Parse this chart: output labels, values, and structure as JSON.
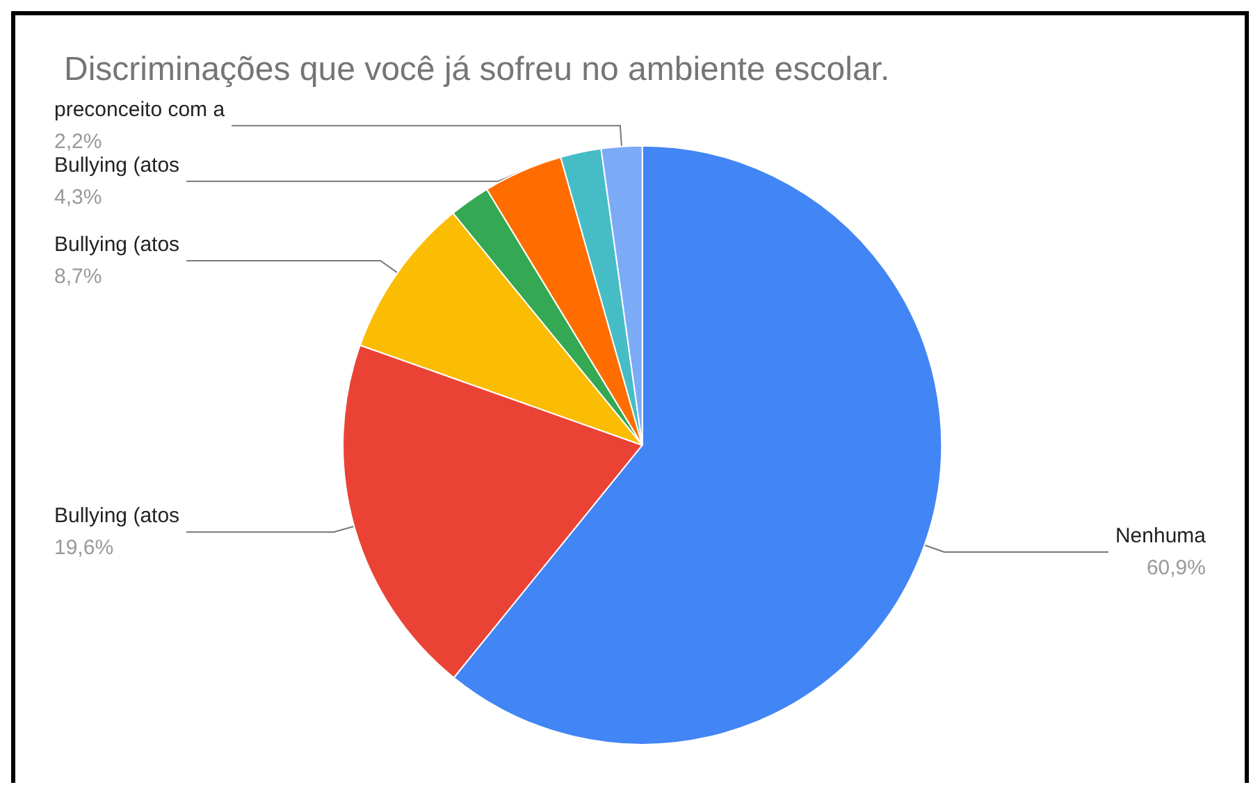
{
  "chart_data": {
    "type": "pie",
    "title": "Discriminações que você já sofreu no ambiente escolar.",
    "categories": [
      "Nenhuma",
      "Bullying (atos",
      "Bullying (atos",
      null,
      "Bullying (atos",
      null,
      "preconceito com a"
    ],
    "values": [
      60.9,
      19.6,
      8.7,
      2.2,
      4.3,
      2.2,
      2.2
    ],
    "value_labels": [
      "60,9%",
      "19,6%",
      "8,7%",
      null,
      "4,3%",
      null,
      "2,2%"
    ],
    "colors": [
      "#4285f4",
      "#ea4335",
      "#fbbc04",
      "#34a853",
      "#ff6d01",
      "#46bdc6",
      "#7baaf7"
    ],
    "legend": false
  }
}
